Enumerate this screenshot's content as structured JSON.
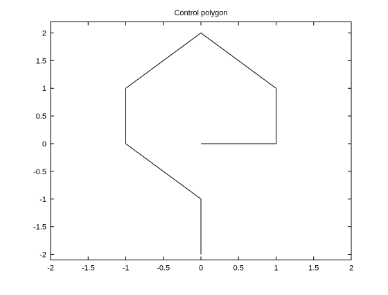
{
  "chart_data": {
    "type": "line",
    "title": "Control polygon",
    "xlabel": "",
    "ylabel": "",
    "xlim": [
      -2,
      2
    ],
    "ylim": [
      -2.1,
      2.2
    ],
    "xticks": [
      -2,
      -1.5,
      -1,
      -0.5,
      0,
      0.5,
      1,
      1.5,
      2
    ],
    "yticks": [
      -2,
      -1.5,
      -1,
      -0.5,
      0,
      0.5,
      1,
      1.5,
      2
    ],
    "xtick_labels": [
      "-2",
      "-1.5",
      "-1",
      "-0.5",
      "0",
      "0.5",
      "1",
      "1.5",
      "2"
    ],
    "ytick_labels": [
      "-2",
      "-1.5",
      "-1",
      "-0.5",
      "0",
      "0.5",
      "1",
      "1.5",
      "2"
    ],
    "grid": false,
    "legend": "none",
    "series": [
      {
        "color": "#000000",
        "x": [
          0,
          1,
          1,
          0,
          -1,
          -1,
          0,
          0
        ],
        "y": [
          0,
          0,
          1,
          2,
          1,
          0,
          -1,
          -2
        ]
      }
    ]
  }
}
